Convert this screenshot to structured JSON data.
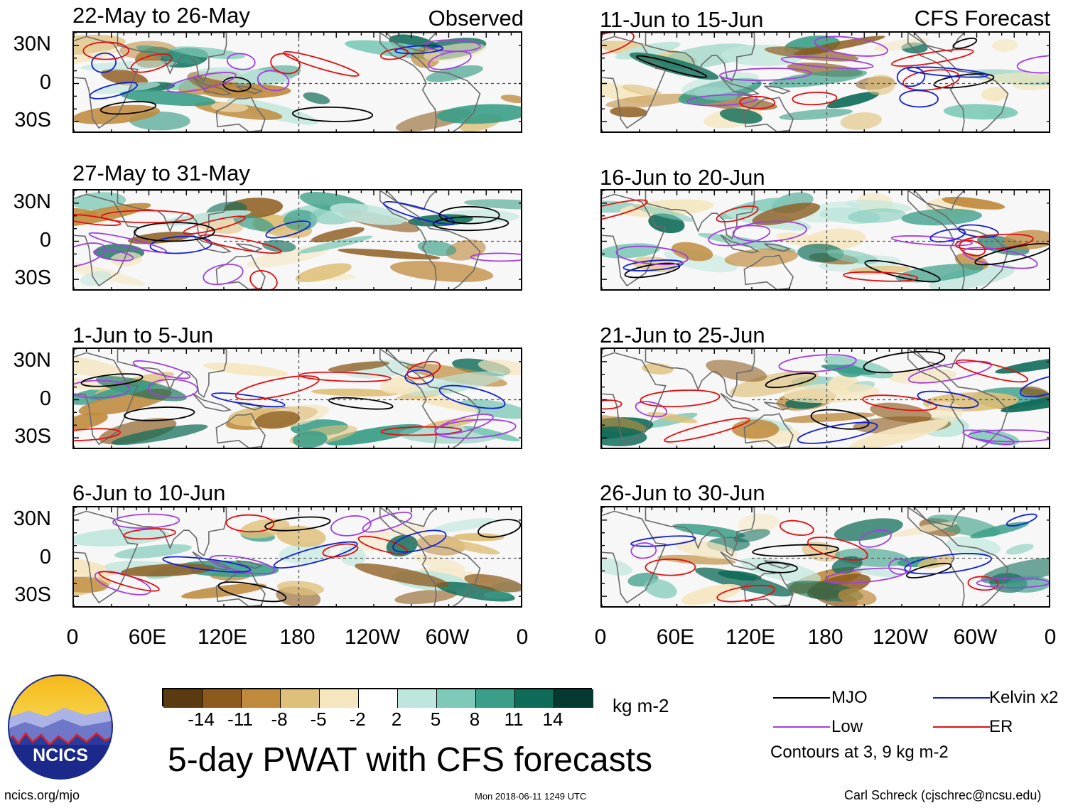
{
  "header": {
    "observed_tag": "Observed",
    "forecast_tag": "CFS Forecast"
  },
  "observed_panels": [
    {
      "title": "22-May to 26-May"
    },
    {
      "title": "27-May to 31-May"
    },
    {
      "title": "1-Jun to 5-Jun"
    },
    {
      "title": "6-Jun to 10-Jun"
    }
  ],
  "forecast_panels": [
    {
      "title": "11-Jun to 15-Jun"
    },
    {
      "title": "16-Jun to 20-Jun"
    },
    {
      "title": "21-Jun to 25-Jun"
    },
    {
      "title": "26-Jun to 30-Jun"
    }
  ],
  "axes": {
    "lat_labels": [
      "30N",
      "0",
      "30S"
    ],
    "lon_labels": [
      "0",
      "60E",
      "120E",
      "180",
      "120W",
      "60W",
      "0"
    ]
  },
  "colorbar": {
    "unit": "kg m-2",
    "tick_labels": [
      "-14",
      "-11",
      "-8",
      "-5",
      "-2",
      "2",
      "5",
      "8",
      "11",
      "14"
    ],
    "colors": [
      "#5a3a10",
      "#8c5a1c",
      "#bf8a3c",
      "#dfc07a",
      "#f5e6bf",
      "#ffffff",
      "#bfe6dc",
      "#7ec9b8",
      "#3a9e88",
      "#0e6b58",
      "#06392f"
    ]
  },
  "legend": {
    "items": [
      {
        "label": "MJO",
        "color": "#000000"
      },
      {
        "label": "Kelvin x2",
        "color": "#1020d0"
      },
      {
        "label": "Low",
        "color": "#a040e0"
      },
      {
        "label": "ER",
        "color": "#e01010"
      }
    ],
    "note": "Contours at 3, 9 kg m-2"
  },
  "footer": {
    "main_title": "5-day PWAT with CFS forecasts",
    "logo_text": "NCICS",
    "url": "ncics.org/mjo",
    "timestamp": "Mon 2018-06-11 1249 UTC",
    "credit": "Carl Schreck (cjschrec@ncsu.edu)"
  }
}
